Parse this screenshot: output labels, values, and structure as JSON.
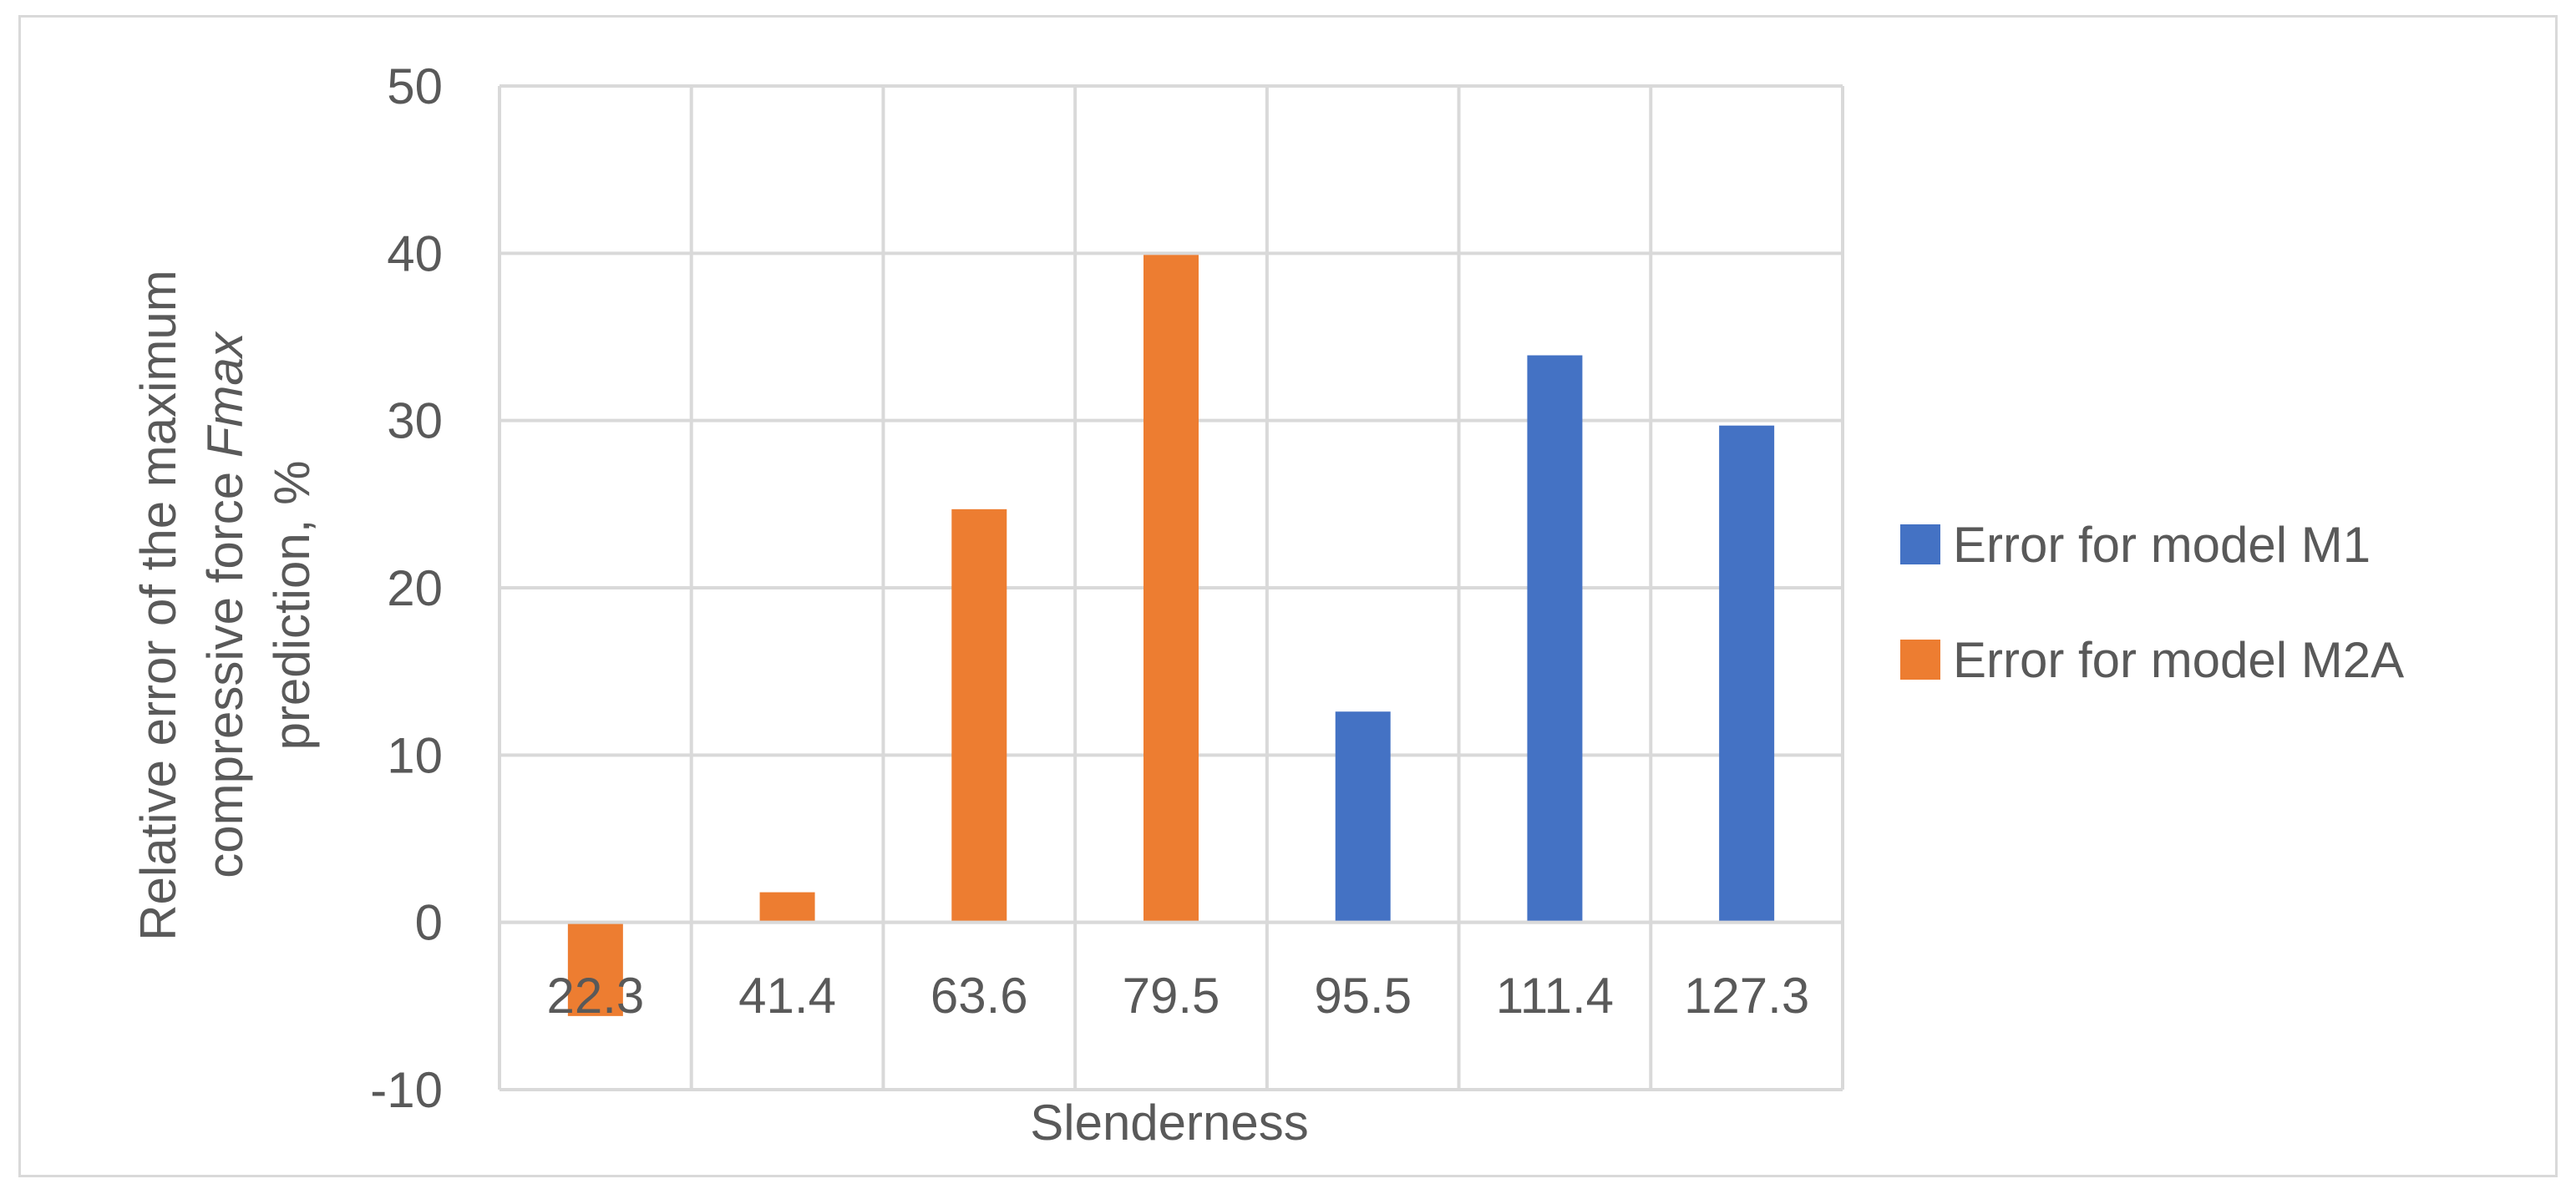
{
  "chart_data": {
    "type": "bar",
    "categories": [
      "22.3",
      "41.4",
      "63.6",
      "79.5",
      "95.5",
      "111.4",
      "127.3"
    ],
    "series": [
      {
        "name": "Error for model M1",
        "color": "#4472c4",
        "values": [
          null,
          null,
          null,
          null,
          12.6,
          33.9,
          29.7
        ]
      },
      {
        "name": "Error for model M2A",
        "color": "#ed7d31",
        "values": [
          -5.6,
          1.8,
          24.7,
          39.9,
          null,
          null,
          null
        ]
      }
    ],
    "xlabel": "Slenderness",
    "ylabel_lines": [
      "Relative error of the maximum",
      "compressive force ",
      "Fmax",
      "prediction, %"
    ],
    "ylim": [
      -10,
      50
    ],
    "yticks": [
      50,
      40,
      30,
      20,
      10,
      0,
      -10
    ],
    "grid": true,
    "legend": "right"
  }
}
